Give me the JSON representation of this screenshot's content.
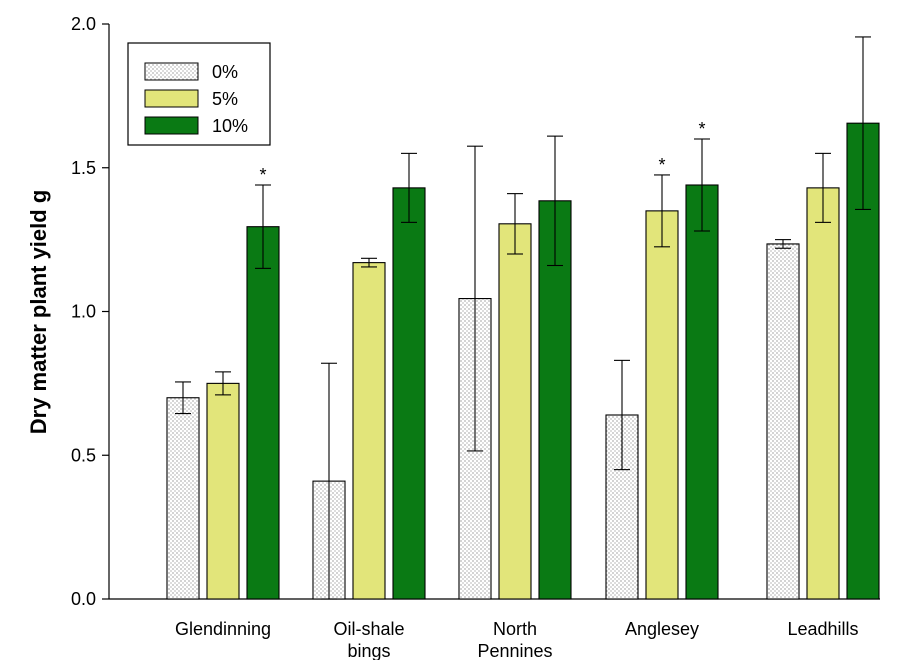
{
  "chart_data": {
    "type": "bar",
    "ylabel": "Dry matter plant yield g",
    "ylim": [
      0,
      2.0
    ],
    "yticks": [
      0.0,
      0.5,
      1.0,
      1.5,
      2.0
    ],
    "ytick_labels": [
      "0.0",
      "0.5",
      "1.0",
      "1.5",
      "2.0"
    ],
    "categories": [
      "Glendinning",
      "Oil-shale bings",
      "North Pennines",
      "Anglesey",
      "Leadhills"
    ],
    "category_lines": [
      [
        "Glendinning"
      ],
      [
        "Oil-shale",
        "bings"
      ],
      [
        "North",
        "Pennines"
      ],
      [
        "Anglesey"
      ],
      [
        "Leadhills"
      ]
    ],
    "legend_position": "top-left",
    "series": [
      {
        "name": "0%",
        "fill": "dotted",
        "color": "#ffffff",
        "values": [
          0.7,
          0.41,
          1.045,
          0.64,
          1.235
        ],
        "errors": [
          0.055,
          0.41,
          0.53,
          0.19,
          0.015
        ],
        "significant": [
          false,
          false,
          false,
          false,
          false
        ]
      },
      {
        "name": "5%",
        "fill": "solid",
        "color": "#e2e57a",
        "values": [
          0.75,
          1.17,
          1.305,
          1.35,
          1.43
        ],
        "errors": [
          0.04,
          0.015,
          0.105,
          0.125,
          0.12
        ],
        "significant": [
          false,
          false,
          false,
          true,
          false
        ]
      },
      {
        "name": "10%",
        "fill": "solid",
        "color": "#0a7a14",
        "values": [
          1.295,
          1.43,
          1.385,
          1.44,
          1.655
        ],
        "errors": [
          0.145,
          0.12,
          0.225,
          0.16,
          0.3
        ],
        "significant": [
          true,
          false,
          false,
          true,
          false
        ]
      }
    ],
    "significance_marker": "*"
  }
}
